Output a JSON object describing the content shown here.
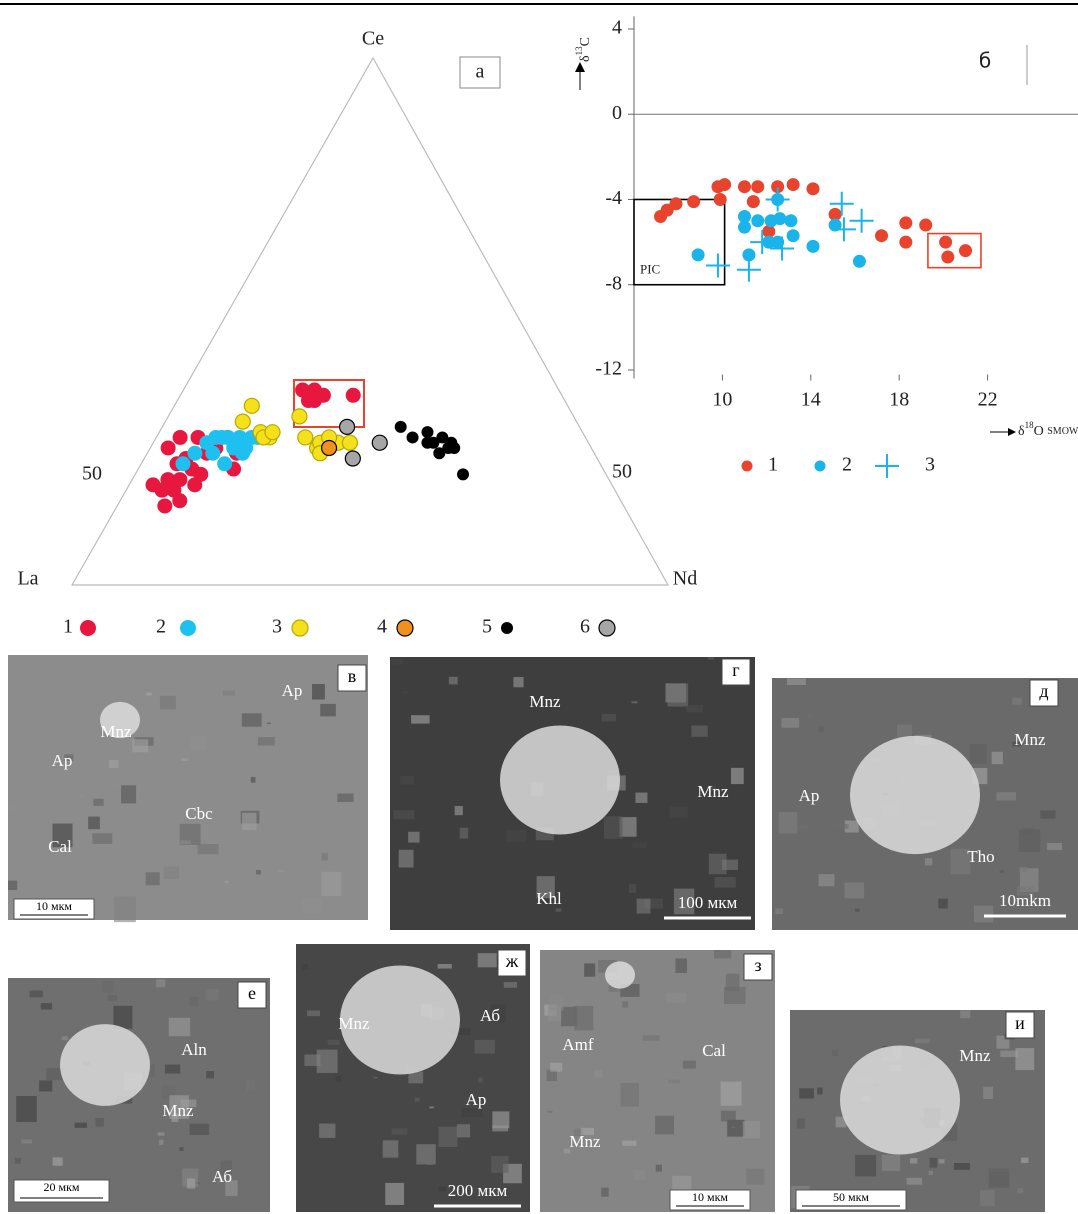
{
  "chart_data": [
    {
      "type": "ternary",
      "panel": "а",
      "vertices": [
        "Ce",
        "La",
        "Nd"
      ],
      "side_labels": [
        "50",
        "50"
      ],
      "series": [
        {
          "name": "1",
          "color": "#e8173f",
          "values": [
            [
              77,
              19,
              4
            ],
            [
              77,
              15,
              8
            ],
            [
              76,
              18,
              6
            ],
            [
              74,
              20,
              6
            ],
            [
              74,
              18,
              8
            ],
            [
              72,
              20,
              8
            ],
            [
              69,
              22,
              9
            ],
            [
              74,
              16,
              10
            ],
            [
              70,
              19,
              11
            ],
            [
              68,
              21,
              11
            ],
            [
              71,
              23,
              6
            ],
            [
              69,
              24,
              7
            ],
            [
              71,
              26,
              3
            ],
            [
              68,
              28,
              4
            ],
            [
              65,
              25,
              10
            ],
            [
              63,
              26,
              11
            ],
            [
              60,
              28,
              12
            ],
            [
              62,
              22,
              16
            ],
            [
              60,
              25,
              15
            ],
            [
              65,
              28,
              7
            ],
            [
              43,
              37,
              20
            ],
            [
              41,
              37,
              22
            ],
            [
              42,
              35,
              23
            ],
            [
              40,
              36,
              24
            ],
            [
              43,
              35,
              22
            ],
            [
              35,
              36,
              29
            ]
          ]
        },
        {
          "name": "2",
          "color": "#1ec0ef",
          "values": [
            [
              70,
              23,
              7
            ],
            [
              67,
              25,
              8
            ],
            [
              64,
              27,
              9
            ],
            [
              62,
              28,
              10
            ],
            [
              61,
              28,
              11
            ],
            [
              60,
              28,
              12
            ],
            [
              58,
              28,
              14
            ],
            [
              56,
              28,
              16
            ],
            [
              55,
              28,
              17
            ],
            [
              60,
              26,
              14
            ],
            [
              59,
              25,
              16
            ],
            [
              64,
              25,
              11
            ],
            [
              63,
              23,
              14
            ],
            [
              58,
              26,
              16
            ],
            [
              54,
              28,
              18
            ]
          ]
        },
        {
          "name": "3",
          "color": "#f5e11b",
          "edgecolor": "#b5a800",
          "values": [
            [
              53,
              34,
              13
            ],
            [
              56,
              31,
              13
            ],
            [
              54,
              29,
              17
            ],
            [
              53,
              28,
              19
            ],
            [
              54,
              28,
              18
            ],
            [
              52,
              29,
              19
            ],
            [
              46,
              32,
              22
            ],
            [
              46,
              26,
              28
            ],
            [
              45,
              27,
              28
            ],
            [
              42,
              27,
              31
            ],
            [
              40,
              27,
              33
            ],
            [
              46,
              25,
              29
            ],
            [
              43,
              28,
              29
            ],
            [
              47,
              28,
              25
            ]
          ]
        },
        {
          "name": "4",
          "color": "#f0901e",
          "edgecolor": "#000000",
          "values": [
            [
              44,
              26,
              30
            ]
          ]
        },
        {
          "name": "5",
          "color": "#000000",
          "values": [
            [
              30,
              30,
              40
            ],
            [
              29,
              28,
              43
            ],
            [
              26,
              29,
              45
            ],
            [
              26,
              27,
              47
            ],
            [
              24,
              28,
              48
            ],
            [
              24,
              26,
              50
            ],
            [
              23,
              27,
              50
            ],
            [
              23,
              26,
              51
            ],
            [
              24,
              21,
              55
            ],
            [
              27,
              27,
              46
            ],
            [
              26,
              25,
              49
            ]
          ]
        },
        {
          "name": "6",
          "color": "#a6a6a6",
          "edgecolor": "#000000",
          "values": [
            [
              39,
              30,
              31
            ],
            [
              35,
              27,
              38
            ],
            [
              41,
              24,
              35
            ]
          ]
        }
      ]
    },
    {
      "type": "scatter",
      "panel": "б",
      "ylabel": [
        "δ",
        "13",
        "C"
      ],
      "xlabel": [
        "δ",
        "18",
        "O ",
        "SMOW"
      ],
      "xlim": [
        6,
        26
      ],
      "ylim": [
        -12.4,
        4.6
      ],
      "xticks": [
        10,
        14,
        18,
        22
      ],
      "yticks": [
        -12,
        -8,
        -4,
        0,
        4
      ],
      "regions": [
        {
          "label": "PIC",
          "x": [
            6,
            10.1
          ],
          "y": [
            -8,
            -4
          ],
          "color": "#000000"
        },
        {
          "x": [
            19.3,
            21.7
          ],
          "y": [
            -7.2,
            -5.6
          ],
          "color": "#e8432c"
        }
      ],
      "series": [
        {
          "name": "1",
          "color": "#e8432c",
          "marker": "o",
          "x": [
            7.2,
            7.5,
            7.9,
            8.7,
            9.8,
            10.1,
            9.9,
            11.0,
            11.4,
            11.6,
            12.5,
            13.2,
            14.1,
            12.1,
            15.1,
            17.2,
            18.3,
            18.3,
            19.2,
            20.1,
            20.2,
            21.0
          ],
          "y": [
            -4.8,
            -4.5,
            -4.2,
            -4.1,
            -3.4,
            -3.3,
            -4.0,
            -3.4,
            -4.1,
            -3.4,
            -3.4,
            -3.3,
            -3.5,
            -5.5,
            -4.7,
            -5.7,
            -5.1,
            -6.0,
            -5.2,
            -6.0,
            -6.7,
            -6.4
          ]
        },
        {
          "name": "2",
          "color": "#1ab4ea",
          "marker": "o",
          "x": [
            8.9,
            11.0,
            11.2,
            11.0,
            11.6,
            12.2,
            12.6,
            13.1,
            13.2,
            12.5,
            12.1,
            14.1,
            15.1,
            16.2,
            12.5
          ],
          "y": [
            -6.6,
            -5.3,
            -6.6,
            -4.8,
            -5.0,
            -5.0,
            -4.9,
            -5.0,
            -5.7,
            -6.0,
            -6.0,
            -6.2,
            -5.2,
            -6.9,
            -4.0
          ]
        },
        {
          "name": "3",
          "color": "#1ab4ea",
          "marker": "+",
          "x": [
            9.8,
            11.2,
            12.5,
            15.4,
            15.5,
            16.3,
            12.7,
            11.8
          ],
          "y": [
            -7.1,
            -7.3,
            -4.0,
            -4.2,
            -5.4,
            -5.0,
            -6.3,
            -6.0
          ]
        }
      ]
    }
  ],
  "photos": [
    {
      "letter": "в",
      "labels": [
        "Mnz",
        "Ap",
        "Ap",
        "Cbc",
        "Cal"
      ],
      "scale": "10 мкм"
    },
    {
      "letter": "г",
      "labels": [
        "Mnz",
        "Mnz",
        "Khl"
      ],
      "scale": "100 мкм"
    },
    {
      "letter": "д",
      "labels": [
        "Mnz",
        "Ap",
        "Tho"
      ],
      "scale": "10mkm"
    },
    {
      "letter": "е",
      "labels": [
        "Aln",
        "Mnz",
        "Аб"
      ],
      "scale": "20 мкм"
    },
    {
      "letter": "ж",
      "labels": [
        "Аб",
        "Mnz",
        "Ap"
      ],
      "scale": "200 мкм"
    },
    {
      "letter": "з",
      "labels": [
        "Amf",
        "Cal",
        "Mnz"
      ],
      "scale": "10 мкм"
    },
    {
      "letter": "и",
      "labels": [
        "Mnz"
      ],
      "scale": "50 мкм"
    }
  ]
}
